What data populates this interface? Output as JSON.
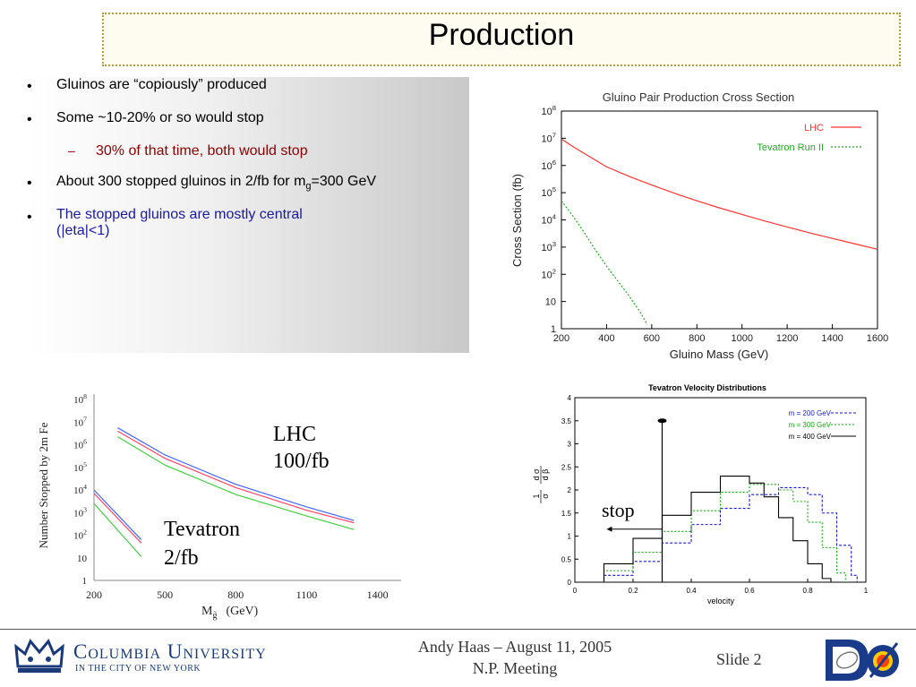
{
  "title": "Production",
  "bullets": {
    "b1": "Gluinos are “copiously” produced",
    "b2": "Some ~10-20% or so would stop",
    "sub1": "30% of that time, both would stop",
    "b3_pre": "About 300 stopped gluinos in 2/fb for m",
    "b3_sub": "g",
    "b3_post": "=300 GeV",
    "b4_line1": "The stopped gluinos are mostly central",
    "b4_line2": "(|eta|<1)"
  },
  "colors": {
    "red_text": "#8b0000",
    "blue_text": "#1a1aa0",
    "lhc_red": "#ff3333",
    "tev_green": "#22aa22"
  },
  "footer": {
    "presenter": "Andy Haas – August 11, 2005",
    "meeting": "N.P. Meeting",
    "slide": "Slide 2",
    "university": "Columbia University",
    "university_sub": "IN THE CITY OF NEW YORK",
    "experiment_logo": "DØ",
    "crown_icon": "crown-icon"
  },
  "chart_data": [
    {
      "type": "line",
      "title": "Gluino Pair Production Cross Section",
      "xlabel": "Gluino Mass (GeV)",
      "ylabel": "Cross Section (fb)",
      "xlim": [
        200,
        1600
      ],
      "ylim_log10": [
        0,
        8
      ],
      "yscale": "log",
      "xticks": [
        "200",
        "400",
        "600",
        "800",
        "1000",
        "1200",
        "1400",
        "1600"
      ],
      "yticks": [
        {
          "base": "1",
          "exp": ""
        },
        {
          "base": "10",
          "exp": ""
        },
        {
          "base": "10",
          "exp": "2"
        },
        {
          "base": "10",
          "exp": "3"
        },
        {
          "base": "10",
          "exp": "4"
        },
        {
          "base": "10",
          "exp": "5"
        },
        {
          "base": "10",
          "exp": "6"
        },
        {
          "base": "10",
          "exp": "7"
        },
        {
          "base": "10",
          "exp": "8"
        }
      ],
      "legend_position": "top-right",
      "series": [
        {
          "name": "LHC",
          "color": "#ff3333",
          "dash": "",
          "x": [
            200,
            250,
            300,
            400,
            500,
            600,
            700,
            800,
            900,
            1000,
            1100,
            1200,
            1300,
            1400,
            1500,
            1600
          ],
          "log10y": [
            6.97,
            6.7,
            6.45,
            5.95,
            5.6,
            5.28,
            4.98,
            4.7,
            4.44,
            4.2,
            3.96,
            3.74,
            3.52,
            3.32,
            3.12,
            2.92
          ]
        },
        {
          "name": "Tevatron Run II",
          "color": "#22aa22",
          "dash": "2,2",
          "x": [
            200,
            250,
            300,
            350,
            400,
            450,
            500,
            550,
            580
          ],
          "log10y": [
            4.7,
            4.15,
            3.55,
            2.9,
            2.3,
            1.75,
            1.2,
            0.6,
            0.15
          ]
        }
      ]
    },
    {
      "type": "line",
      "ylabel": "Number Stopped by 2m Fe",
      "xlabel_main": "M",
      "xlabel_sub": "g̃",
      "xlabel_unit": "(GeV)",
      "xlim": [
        200,
        1500
      ],
      "ylim_log10": [
        0,
        8
      ],
      "yscale": "log",
      "xticks": [
        "200",
        "500",
        "800",
        "1100",
        "1400"
      ],
      "yticks": [
        {
          "base": "1",
          "exp": ""
        },
        {
          "base": "10",
          "exp": ""
        },
        {
          "base": "10",
          "exp": "2"
        },
        {
          "base": "10",
          "exp": "3"
        },
        {
          "base": "10",
          "exp": "4"
        },
        {
          "base": "10",
          "exp": "5"
        },
        {
          "base": "10",
          "exp": "6"
        },
        {
          "base": "10",
          "exp": "7"
        },
        {
          "base": "10",
          "exp": "8"
        }
      ],
      "annotations": {
        "lhc_line1": "LHC",
        "lhc_line2": "100/fb",
        "tev_line1": "Tevatron",
        "tev_line2": "2/fb"
      },
      "series": [
        {
          "name": "",
          "color": "#4466ff",
          "x": [
            300,
            500,
            800,
            1100,
            1300
          ],
          "log10y": [
            6.75,
            5.55,
            4.25,
            3.25,
            2.65
          ]
        },
        {
          "name": "",
          "color": "#ff4466",
          "x": [
            300,
            500,
            800,
            1100,
            1300
          ],
          "log10y": [
            6.6,
            5.4,
            4.1,
            3.1,
            2.55
          ]
        },
        {
          "name": "",
          "color": "#44cc44",
          "x": [
            300,
            500,
            800,
            1100,
            1300
          ],
          "log10y": [
            6.35,
            5.1,
            3.8,
            2.85,
            2.25
          ]
        },
        {
          "name": "",
          "color": "#4466ff",
          "x": [
            200,
            400
          ],
          "log10y": [
            4.0,
            1.8
          ]
        },
        {
          "name": "",
          "color": "#ff4466",
          "x": [
            200,
            400
          ],
          "log10y": [
            3.85,
            1.65
          ]
        },
        {
          "name": "",
          "color": "#44cc44",
          "x": [
            200,
            400
          ],
          "log10y": [
            3.4,
            1.05
          ]
        }
      ]
    },
    {
      "type": "line",
      "title": "Tevatron Velocity Distributions",
      "xlabel": "velocity",
      "ylabel_num": "1",
      "ylabel_den": "σ",
      "ylabel_num2": "d σ",
      "ylabel_den2": "d β",
      "xlim": [
        0,
        1
      ],
      "ylim": [
        0,
        4
      ],
      "xticks": [
        "0",
        "0.2",
        "0.4",
        "0.6",
        "0.8",
        "1"
      ],
      "yticks": [
        "0",
        "0.5",
        "1",
        "1.5",
        "2",
        "2.5",
        "3",
        "3.5",
        "4"
      ],
      "legend_position": "top-right",
      "annotation": "stop",
      "cut_x": 0.3,
      "series": [
        {
          "name": "m = 200 GeV",
          "color": "#1a1acc",
          "dash": "3,2",
          "x": [
            0,
            0.1,
            0.2,
            0.3,
            0.4,
            0.5,
            0.6,
            0.7,
            0.75,
            0.8,
            0.85,
            0.9,
            0.95,
            0.97
          ],
          "y": [
            0,
            0.15,
            0.45,
            0.85,
            1.25,
            1.6,
            1.9,
            2.05,
            2.05,
            1.9,
            1.5,
            0.8,
            0.15,
            0
          ]
        },
        {
          "name": "m = 300 GeV",
          "color": "#11aa11",
          "dash": "2,2",
          "x": [
            0,
            0.1,
            0.2,
            0.3,
            0.4,
            0.5,
            0.6,
            0.65,
            0.7,
            0.75,
            0.8,
            0.85,
            0.9,
            0.93
          ],
          "y": [
            0,
            0.25,
            0.65,
            1.1,
            1.55,
            1.95,
            2.12,
            2.12,
            2.0,
            1.75,
            1.3,
            0.75,
            0.2,
            0
          ]
        },
        {
          "name": "m = 400 GeV",
          "color": "#000000",
          "dash": "",
          "x": [
            0,
            0.1,
            0.2,
            0.3,
            0.4,
            0.5,
            0.55,
            0.6,
            0.65,
            0.7,
            0.75,
            0.8,
            0.85,
            0.88
          ],
          "y": [
            0,
            0.4,
            0.95,
            1.45,
            1.95,
            2.3,
            2.3,
            2.15,
            1.85,
            1.4,
            0.9,
            0.4,
            0.08,
            0
          ]
        }
      ]
    }
  ]
}
